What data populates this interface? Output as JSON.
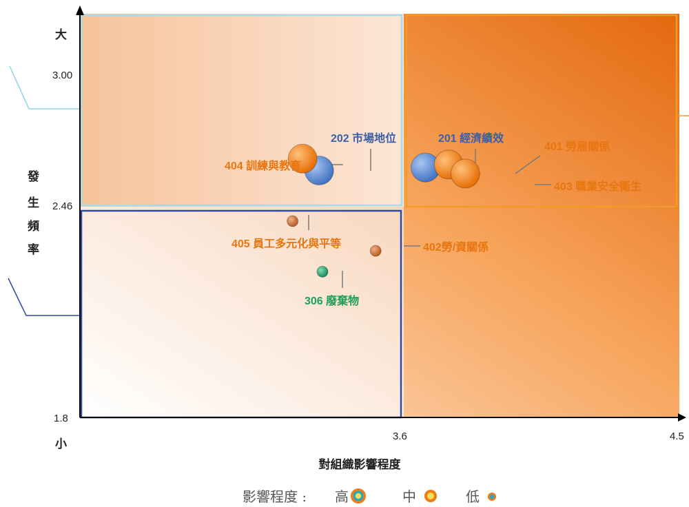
{
  "chart_data": {
    "type": "scatter",
    "xlabel": "對組織影響程度",
    "ylabel": "發生頻率",
    "x_min_label": "",
    "x_ticks": [
      {
        "value": 3.6,
        "label": "3.6"
      },
      {
        "value": 4.5,
        "label": "4.5"
      }
    ],
    "y_ticks": [
      {
        "value": 1.8,
        "label": "1.8"
      },
      {
        "value": 2.46,
        "label": "2.46"
      },
      {
        "value": 3.0,
        "label": "3.00"
      }
    ],
    "y_top_word": "大",
    "y_bottom_word": "小",
    "xlim": [
      2.7,
      4.5
    ],
    "ylim": [
      1.8,
      3.18
    ],
    "quadrant_threshold": {
      "x": 3.6,
      "y": 2.46
    },
    "points": [
      {
        "label": "202 市場地位",
        "x": 3.42,
        "y": 2.63,
        "impact": "high",
        "color": "#4a7cc9"
      },
      {
        "label": "404 訓練與教育",
        "x": 3.37,
        "y": 2.67,
        "impact": "high",
        "color": "#f07b12"
      },
      {
        "label": "201 經濟績效",
        "x": 3.74,
        "y": 2.64,
        "impact": "high",
        "color": "#4a7cc9"
      },
      {
        "label": "401 勞雇關係",
        "x": 3.81,
        "y": 2.65,
        "impact": "high",
        "color": "#f07b12"
      },
      {
        "label": "403 職業安全衛生",
        "x": 3.86,
        "y": 2.62,
        "impact": "high",
        "color": "#f07b12"
      },
      {
        "label": "405 員工多元化與平等",
        "x": 3.34,
        "y": 2.46,
        "impact": "low",
        "color": "#d2691e"
      },
      {
        "label": "402勞/資關係",
        "x": 3.59,
        "y": 2.36,
        "impact": "low",
        "color": "#d2691e"
      },
      {
        "label": "306 廢棄物",
        "x": 3.43,
        "y": 2.29,
        "impact": "low",
        "color": "#1e9e5a"
      }
    ],
    "legend": {
      "title": "影響程度 : ",
      "items": [
        {
          "label": "高",
          "level": "high"
        },
        {
          "label": "中",
          "level": "medium"
        },
        {
          "label": "低",
          "level": "low"
        }
      ],
      "placement": "bottom-center"
    },
    "colors": {
      "blue": "#4a7cc9",
      "orange": "#f07b12",
      "green": "#1e9e5a",
      "quadrant_orange": "#f39a2a",
      "quadrant_blue": "#2e4a9e",
      "quadrant_light": "#a6dcea"
    }
  }
}
